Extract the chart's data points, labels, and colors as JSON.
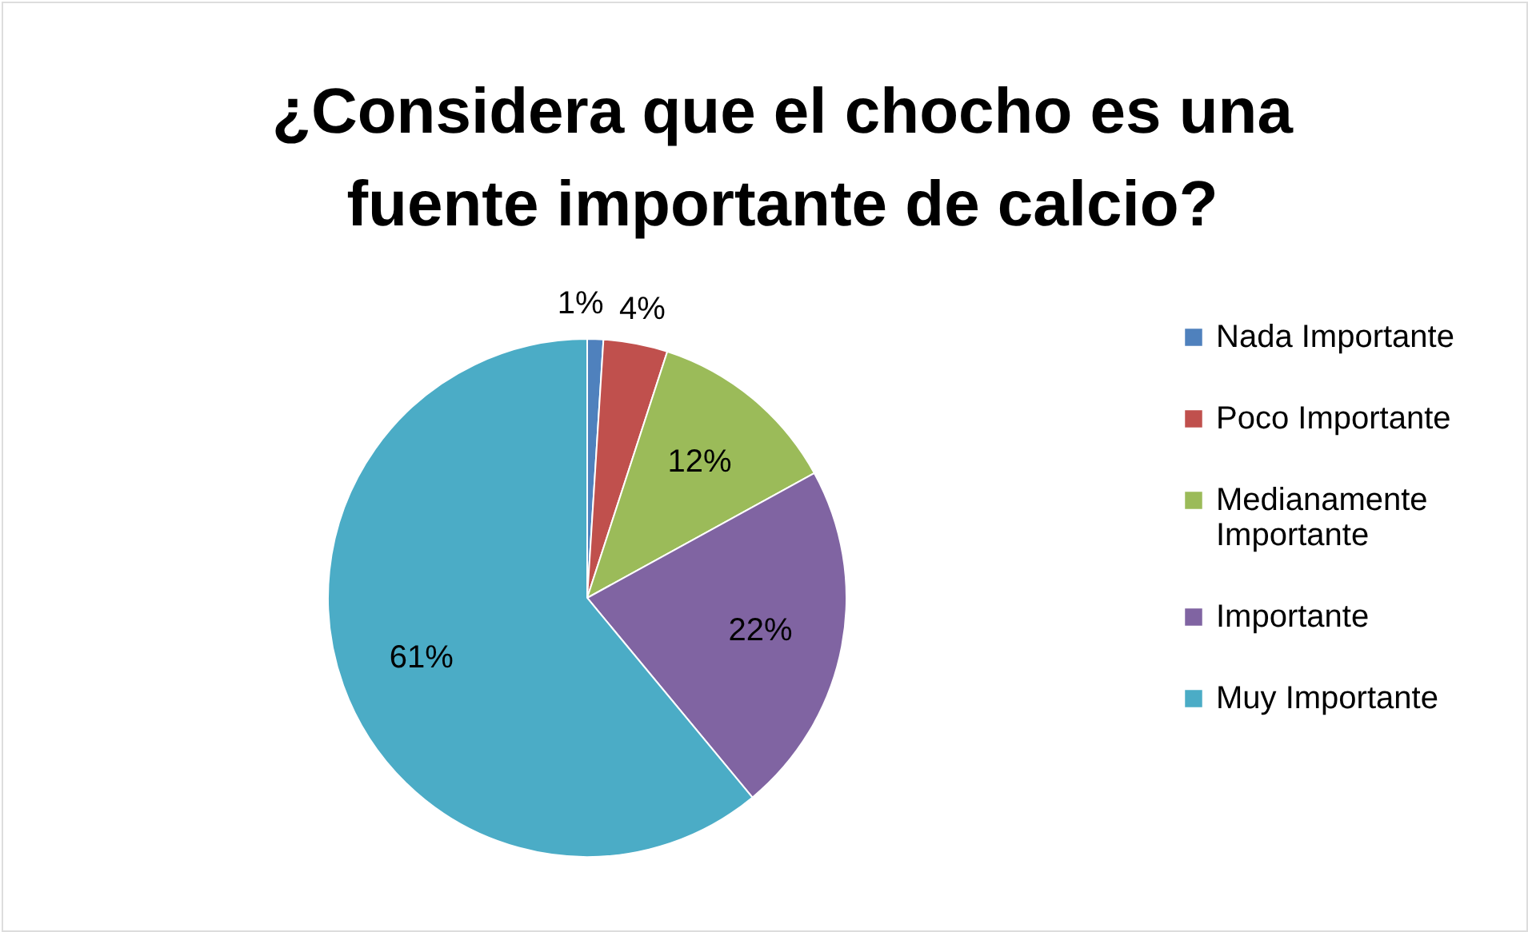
{
  "chart_data": {
    "type": "pie",
    "title": "¿Considera que el chocho es una fuente importante de calcio?",
    "categories": [
      "Nada Importante",
      "Poco Importante",
      "Medianamente Importante",
      "Importante",
      "Muy Importante"
    ],
    "values": [
      1,
      4,
      12,
      22,
      61
    ],
    "colors": [
      "#4f81bd",
      "#c0504d",
      "#9bbb59",
      "#8064a2",
      "#4bacc6"
    ],
    "value_labels": [
      "1%",
      "4%",
      "12%",
      "22%",
      "61%"
    ],
    "legend": "right"
  }
}
